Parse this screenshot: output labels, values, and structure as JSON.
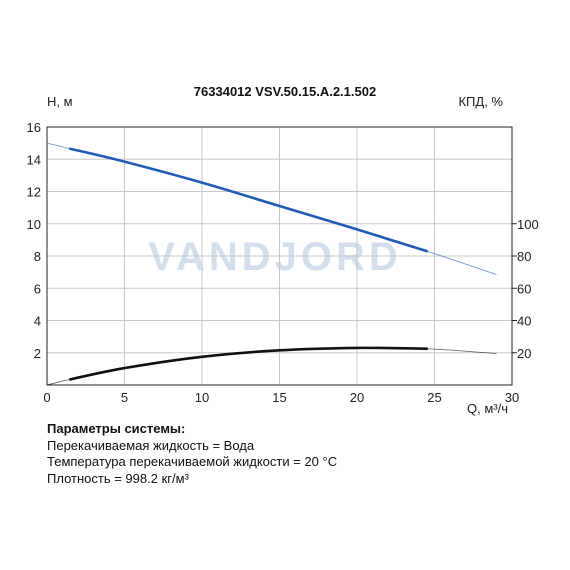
{
  "chart_data": {
    "type": "line",
    "title": "76334012 VSV.50.15.A.2.1.502",
    "ylabel": "H, м",
    "y2label": "КПД, %",
    "xlabel": "Q, м³/ч",
    "watermark": "VANDJORD",
    "xlim": [
      0,
      30
    ],
    "ylim": [
      0,
      16
    ],
    "y2lim": [
      0,
      160
    ],
    "xticks": [
      "0",
      "5",
      "10",
      "15",
      "20",
      "25",
      "30"
    ],
    "yticks": [
      "2",
      "4",
      "6",
      "8",
      "10",
      "12",
      "14",
      "16"
    ],
    "y2ticks": [
      "20",
      "40",
      "60",
      "80",
      "100"
    ],
    "grid": true,
    "series": [
      {
        "color": "#1f5bb8",
        "axis": "left",
        "working_range": [
          1.5,
          24.5
        ],
        "x": [
          0,
          1.5,
          5,
          10,
          15,
          20,
          24.5,
          29
        ],
        "y": [
          15.0,
          14.65,
          13.85,
          12.55,
          11.1,
          9.65,
          8.3,
          6.85
        ]
      },
      {
        "color": "#111111",
        "axis": "left",
        "working_range": [
          1.5,
          24.5
        ],
        "x": [
          0,
          1.5,
          5,
          10,
          15,
          20,
          24.5,
          29
        ],
        "y": [
          0.0,
          0.35,
          1.05,
          1.75,
          2.15,
          2.3,
          2.25,
          1.95
        ]
      }
    ]
  },
  "params": {
    "header": "Параметры системы:",
    "lines": [
      "Перекачиваемая жидкость = Вода",
      "Температура перекачиваемой жидкости = 20 °C",
      "Плотность = 998.2 кг/м³"
    ]
  }
}
